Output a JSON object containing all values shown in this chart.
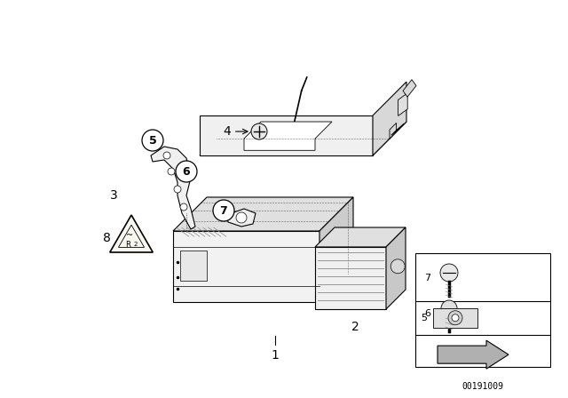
{
  "background_color": "#ffffff",
  "diagram_number": "00191009",
  "black": "#000000",
  "gray": "#888888",
  "light_gray": "#e8e8e8",
  "mid_gray": "#d0d0d0"
}
